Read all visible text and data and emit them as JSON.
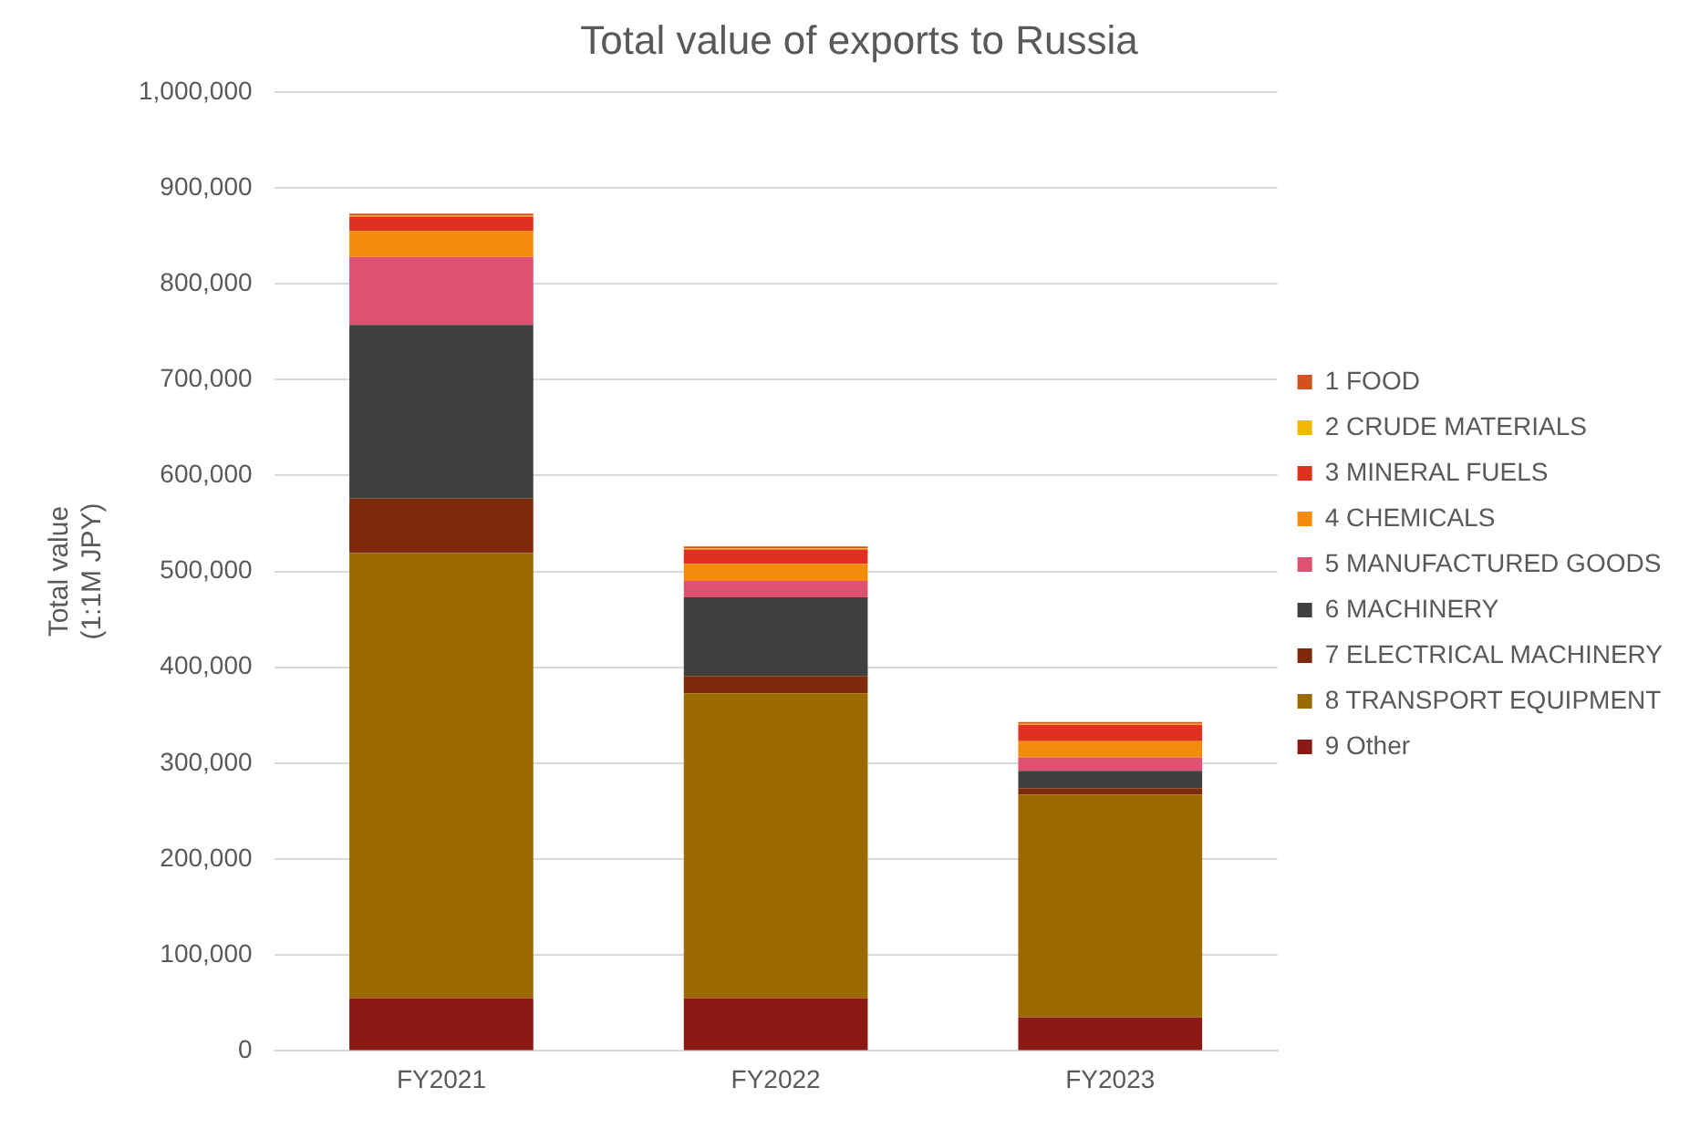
{
  "chart_data": {
    "type": "bar",
    "stacked": true,
    "title": "Total value of exports to Russia",
    "ylabel": "Total value\n(1:1M JPY)",
    "categories": [
      "FY2021",
      "FY2022",
      "FY2023"
    ],
    "series": [
      {
        "name": "9 Other",
        "color": "#8b1a14",
        "values": [
          55000,
          55000,
          35000
        ]
      },
      {
        "name": "8 TRANSPORT EQUIPMENT",
        "color": "#9c6b00",
        "values": [
          464000,
          318000,
          232000
        ]
      },
      {
        "name": "7 ELECTRICAL MACHINERY",
        "color": "#7f2a0a",
        "values": [
          57000,
          18000,
          7000
        ]
      },
      {
        "name": "6 MACHINERY",
        "color": "#404040",
        "values": [
          181000,
          82000,
          18000
        ]
      },
      {
        "name": "5 MANUFACTURED GOODS",
        "color": "#e05070",
        "values": [
          71000,
          17000,
          14000
        ]
      },
      {
        "name": "4 CHEMICALS",
        "color": "#f28c0a",
        "values": [
          27000,
          18000,
          17000
        ]
      },
      {
        "name": "3 MINERAL FUELS",
        "color": "#e03020",
        "values": [
          15000,
          15000,
          17000
        ]
      },
      {
        "name": "2 CRUDE MATERIALS",
        "color": "#f2b800",
        "values": [
          1000,
          1000,
          1000
        ]
      },
      {
        "name": "1 FOOD",
        "color": "#d4501e",
        "values": [
          2000,
          2000,
          2000
        ]
      }
    ],
    "ylim": [
      0,
      1000000
    ],
    "yticks": [
      0,
      {
        "value": 100000,
        "label": "100,000"
      },
      {
        "value": 200000,
        "label": "200,000"
      },
      {
        "value": 300000,
        "label": "300,000"
      },
      {
        "value": 400000,
        "label": "400,000"
      },
      {
        "value": 500000,
        "label": "500,000"
      },
      {
        "value": 600000,
        "label": "600,000"
      },
      {
        "value": 700000,
        "label": "700,000"
      },
      {
        "value": 800000,
        "label": "800,000"
      },
      {
        "value": 900000,
        "label": "900,000"
      },
      {
        "value": 1000000,
        "label": "1,000,000"
      }
    ],
    "grid": "y",
    "legend": "right"
  }
}
